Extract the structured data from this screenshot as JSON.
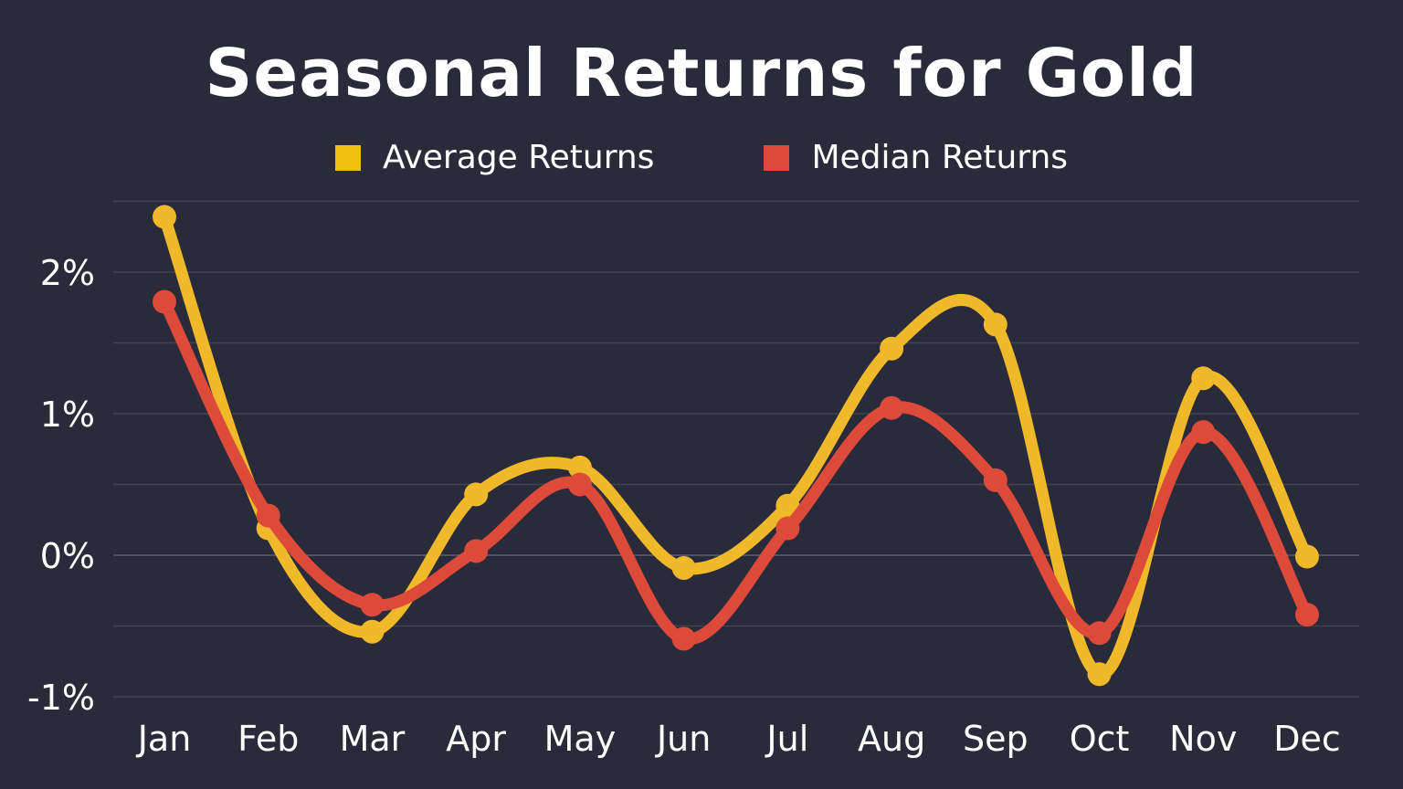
{
  "chart_data": {
    "type": "line",
    "title": "Seasonal Returns for Gold",
    "xlabel": "",
    "ylabel": "",
    "categories": [
      "Jan",
      "Feb",
      "Mar",
      "Apr",
      "May",
      "Jun",
      "Jul",
      "Aug",
      "Sep",
      "Oct",
      "Nov",
      "Dec"
    ],
    "series": [
      {
        "name": "Average Returns",
        "color": "#f0b929",
        "values": [
          2.39,
          0.19,
          -0.54,
          0.43,
          0.62,
          -0.09,
          0.35,
          1.46,
          1.63,
          -0.84,
          1.25,
          -0.01
        ]
      },
      {
        "name": "Median Returns",
        "color": "#de4a3a",
        "values": [
          1.79,
          0.28,
          -0.35,
          0.03,
          0.5,
          -0.59,
          0.19,
          1.04,
          0.53,
          -0.55,
          0.87,
          -0.42
        ]
      }
    ],
    "ylim": [
      -1,
      2.5
    ],
    "yticks": [
      -1,
      0,
      1,
      2
    ],
    "ytick_labels": [
      "-1%",
      "0%",
      "1%",
      "2%"
    ],
    "grid": true,
    "legend_position": "top-center",
    "smooth": true,
    "background": "#2a2b3a"
  }
}
